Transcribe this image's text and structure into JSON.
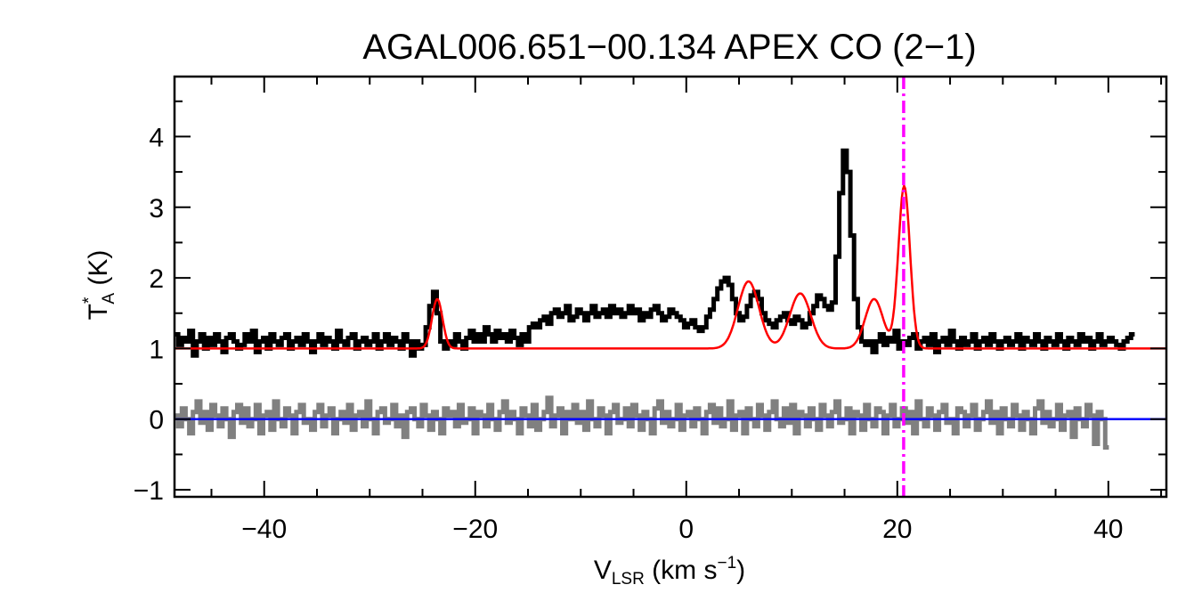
{
  "chart_data": {
    "type": "line",
    "title": "AGAL006.651−00.134  APEX CO (2−1)",
    "xlabel": {
      "main": "V",
      "sub": "LSR",
      "rest": " (km s",
      "sup": "−1",
      "close": ")"
    },
    "ylabel": {
      "main": "T",
      "sup": "*",
      "sub": "A",
      "rest": " (K)"
    },
    "xlim": [
      -48.5,
      45.5
    ],
    "ylim": [
      -1.1,
      4.85
    ],
    "xticks": [
      -40,
      -20,
      0,
      20,
      40
    ],
    "xtick_labels": [
      "−40",
      "−20",
      "0",
      "20",
      "40"
    ],
    "yticks": [
      -1,
      0,
      1,
      2,
      3,
      4
    ],
    "ytick_labels": [
      "−1",
      "0",
      "1",
      "2",
      "3",
      "4"
    ],
    "grid": false,
    "vline": {
      "x": 20.6,
      "color": "#ff00ff",
      "style": "dash-dot"
    },
    "series": [
      {
        "role": "observed-spectrum",
        "color": "#000000",
        "style": "histogram",
        "x_start": -48.5,
        "x_step": 0.35,
        "values": [
          1.2,
          1.05,
          1.15,
          1.1,
          1.25,
          0.9,
          1.1,
          1.2,
          1.0,
          1.15,
          1.05,
          1.2,
          1.1,
          0.95,
          1.15,
          1.2,
          1.1,
          1.0,
          1.05,
          1.2,
          1.1,
          1.25,
          0.95,
          1.1,
          1.15,
          1.0,
          1.2,
          1.1,
          1.05,
          1.15,
          1.2,
          1.0,
          1.1,
          1.15,
          1.05,
          1.2,
          1.1,
          0.95,
          1.1,
          1.2,
          1.05,
          1.15,
          1.1,
          1.0,
          1.25,
          1.1,
          1.05,
          1.15,
          1.2,
          1.0,
          1.1,
          1.15,
          1.05,
          1.1,
          1.2,
          1.0,
          1.1,
          1.2,
          1.05,
          1.15,
          1.1,
          1.0,
          1.2,
          1.1,
          0.9,
          1.1,
          1.0,
          1.05,
          1.3,
          1.6,
          1.8,
          1.5,
          1.1,
          1.0,
          1.1,
          1.05,
          1.2,
          1.1,
          1.0,
          1.15,
          1.25,
          1.1,
          1.2,
          1.1,
          1.3,
          1.2,
          1.1,
          1.25,
          1.15,
          1.2,
          1.1,
          1.25,
          1.15,
          1.05,
          1.2,
          1.1,
          1.3,
          1.35,
          1.3,
          1.4,
          1.45,
          1.35,
          1.5,
          1.55,
          1.45,
          1.5,
          1.6,
          1.4,
          1.45,
          1.55,
          1.5,
          1.4,
          1.5,
          1.6,
          1.45,
          1.5,
          1.55,
          1.45,
          1.6,
          1.5,
          1.55,
          1.45,
          1.5,
          1.6,
          1.5,
          1.55,
          1.4,
          1.5,
          1.45,
          1.55,
          1.6,
          1.5,
          1.4,
          1.45,
          1.55,
          1.5,
          1.45,
          1.4,
          1.3,
          1.35,
          1.4,
          1.3,
          1.25,
          1.3,
          1.45,
          1.55,
          1.7,
          1.85,
          1.95,
          2.0,
          1.9,
          1.7,
          1.5,
          1.4,
          1.45,
          1.6,
          1.75,
          1.8,
          1.7,
          1.5,
          1.4,
          1.35,
          1.3,
          1.4,
          1.45,
          1.5,
          1.4,
          1.35,
          1.45,
          1.4,
          1.3,
          1.35,
          1.5,
          1.6,
          1.75,
          1.7,
          1.6,
          1.55,
          1.65,
          2.3,
          3.2,
          3.8,
          3.5,
          2.6,
          1.7,
          1.3,
          1.1,
          1.05,
          1.1,
          0.95,
          1.1,
          1.2,
          1.05,
          1.15,
          1.1,
          1.25,
          1.0,
          1.1,
          1.05,
          1.15,
          1.2,
          1.0,
          1.1,
          1.15,
          1.05,
          1.2,
          0.95,
          1.1,
          1.15,
          1.05,
          1.25,
          1.1,
          1.0,
          1.15,
          1.05,
          1.1,
          1.2,
          1.0,
          1.1,
          1.15,
          1.05,
          1.2,
          1.1,
          1.0,
          1.1,
          1.15,
          1.05,
          1.1,
          1.2,
          1.0,
          1.15,
          1.1,
          1.05,
          1.2,
          1.1,
          1.0,
          1.15,
          1.1,
          1.05,
          1.2,
          1.1,
          1.0,
          1.15,
          1.1,
          1.05,
          1.2,
          1.1,
          1.15,
          1.0,
          1.1,
          1.2,
          1.05,
          1.1,
          1.15,
          1.1,
          1.05,
          1.0,
          1.1,
          1.15,
          1.2
        ]
      },
      {
        "role": "gaussian-fit",
        "color": "#ff0000",
        "style": "line",
        "baseline": 1.0,
        "components": [
          {
            "center": -23.6,
            "amplitude": 0.7,
            "sigma": 0.5
          },
          {
            "center": 5.9,
            "amplitude": 0.95,
            "sigma": 1.0
          },
          {
            "center": 10.8,
            "amplitude": 0.78,
            "sigma": 1.0
          },
          {
            "center": 17.8,
            "amplitude": 0.7,
            "sigma": 0.85
          },
          {
            "center": 20.65,
            "amplitude": 2.3,
            "sigma": 0.55
          }
        ]
      },
      {
        "role": "residual",
        "color": "#808080",
        "style": "histogram",
        "x_start": -48.5,
        "x_step": 0.35,
        "values": [
          0.05,
          -0.1,
          0.15,
          0.0,
          -0.2,
          0.1,
          0.25,
          -0.05,
          0.1,
          -0.15,
          0.2,
          0.05,
          -0.1,
          0.15,
          0.0,
          -0.25,
          0.1,
          0.2,
          -0.05,
          0.15,
          -0.1,
          0.0,
          0.2,
          -0.2,
          0.05,
          0.1,
          -0.15,
          0.25,
          0.0,
          -0.1,
          0.15,
          0.05,
          -0.2,
          0.1,
          0.2,
          -0.05,
          0.0,
          -0.15,
          0.1,
          0.2,
          -0.1,
          0.05,
          0.15,
          -0.2,
          0.0,
          0.1,
          -0.05,
          0.2,
          -0.15,
          0.05,
          0.1,
          -0.1,
          0.25,
          0.0,
          -0.2,
          0.1,
          0.15,
          -0.05,
          0.0,
          0.2,
          -0.1,
          0.05,
          -0.25,
          0.1,
          0.15,
          0.0,
          -0.1,
          0.2,
          0.05,
          -0.15,
          0.1,
          0.0,
          -0.2,
          0.15,
          0.05,
          0.1,
          -0.1,
          0.2,
          -0.05,
          0.0,
          0.15,
          -0.2,
          0.1,
          0.05,
          -0.1,
          0.2,
          0.0,
          -0.15,
          0.1,
          0.25,
          -0.05,
          0.1,
          0.0,
          -0.2,
          0.15,
          0.05,
          -0.1,
          0.2,
          -0.15,
          0.0,
          0.1,
          0.3,
          -0.1,
          0.05,
          0.15,
          -0.2,
          0.1,
          0.0,
          0.2,
          -0.05,
          0.1,
          -0.15,
          0.25,
          0.0,
          -0.1,
          0.15,
          0.05,
          -0.2,
          0.1,
          0.2,
          -0.05,
          0.0,
          0.15,
          -0.1,
          0.2,
          0.05,
          -0.15,
          0.1,
          0.0,
          -0.2,
          0.15,
          0.25,
          -0.05,
          0.1,
          -0.1,
          0.0,
          0.2,
          -0.15,
          0.05,
          0.1,
          -0.1,
          0.15,
          0.0,
          -0.2,
          0.1,
          0.2,
          -0.05,
          0.15,
          -0.1,
          0.0,
          0.25,
          -0.15,
          0.05,
          0.1,
          -0.2,
          0.15,
          0.0,
          -0.1,
          0.2,
          0.05,
          -0.15,
          0.1,
          0.25,
          0.0,
          -0.1,
          0.15,
          -0.05,
          0.2,
          -0.2,
          0.1,
          0.05,
          -0.1,
          0.15,
          0.0,
          -0.15,
          0.2,
          0.05,
          -0.1,
          0.1,
          0.25,
          -0.05,
          0.0,
          0.15,
          -0.2,
          0.1,
          0.05,
          -0.15,
          0.2,
          0.0,
          -0.1,
          0.15,
          0.1,
          -0.2,
          0.05,
          0.2,
          -0.1,
          0.0,
          0.15,
          -0.05,
          0.1,
          -0.2,
          0.25,
          0.0,
          -0.1,
          0.15,
          0.05,
          -0.15,
          0.1,
          0.2,
          -0.05,
          0.0,
          -0.2,
          0.15,
          0.1,
          -0.1,
          0.05,
          0.2,
          -0.15,
          0.0,
          0.1,
          0.25,
          -0.05,
          0.1,
          -0.2,
          0.15,
          0.0,
          -0.1,
          0.2,
          0.05,
          -0.15,
          0.1,
          0.0,
          -0.2,
          0.15,
          0.25,
          -0.05,
          0.1,
          -0.1,
          0.0,
          0.2,
          -0.15,
          0.05,
          0.1,
          -0.25,
          0.15,
          0.0,
          -0.1,
          0.2,
          0.05,
          -0.35,
          0.1,
          0.0,
          -0.4
        ]
      },
      {
        "role": "zero-level",
        "color": "#0000ff",
        "style": "line",
        "y": 0.0
      }
    ]
  }
}
